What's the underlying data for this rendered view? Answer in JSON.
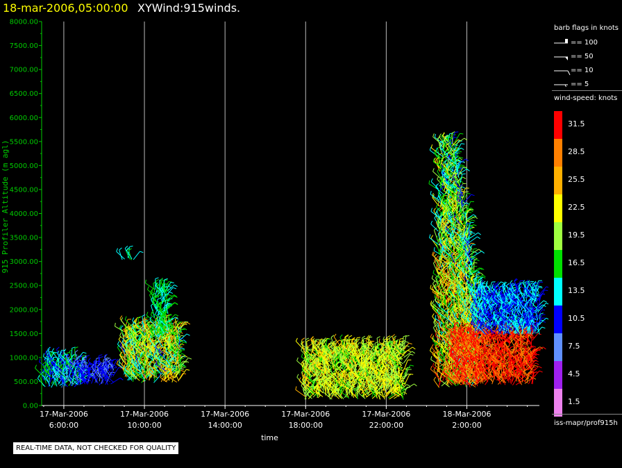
{
  "header": {
    "date_title": "18-mar-2006,05:00:00",
    "main_title": "XYWind:915winds."
  },
  "chart_data": {
    "type": "scatter",
    "subtype": "wind-barb profile",
    "ylabel": "915 Profiler Altitude (m agl)",
    "xlabel": "time",
    "y_ticks": [
      "8000.00",
      "7500.00",
      "7000.00",
      "6500.00",
      "6000.00",
      "5500.00",
      "5000.00",
      "4500.00",
      "4000.00",
      "3500.00",
      "3000.00",
      "2500.00",
      "2000.00",
      "1500.00",
      "1000.00",
      "500.00",
      "0.00"
    ],
    "y_tick_values": [
      8000,
      7500,
      7000,
      6500,
      6000,
      5500,
      5000,
      4500,
      4000,
      3500,
      3000,
      2500,
      2000,
      1500,
      1000,
      500,
      0
    ],
    "ylim": [
      0,
      8000
    ],
    "x_ticks": [
      {
        "date": "17-Mar-2006",
        "time": "6:00:00",
        "hours": 6
      },
      {
        "date": "17-Mar-2006",
        "time": "10:00:00",
        "hours": 10
      },
      {
        "date": "17-Mar-2006",
        "time": "14:00:00",
        "hours": 14
      },
      {
        "date": "17-Mar-2006",
        "time": "18:00:00",
        "hours": 18
      },
      {
        "date": "17-Mar-2006",
        "time": "22:00:00",
        "hours": 22
      },
      {
        "date": "18-Mar-2006",
        "time": "2:00:00",
        "hours": 26
      }
    ],
    "xlim_hours_from_17mar_0000": [
      4.9,
      29.6
    ],
    "grid": "vertical at x ticks",
    "clusters": [
      {
        "t0": 5.0,
        "t1": 6.9,
        "alt0": 400,
        "alt1": 1000,
        "speed_range": [
          4,
          17
        ]
      },
      {
        "t0": 6.9,
        "t1": 8.5,
        "alt0": 450,
        "alt1": 800,
        "speed_range": [
          6,
          12
        ]
      },
      {
        "t0": 8.8,
        "t1": 9.5,
        "alt0": 3050,
        "alt1": 3100,
        "speed_range": [
          14,
          15
        ]
      },
      {
        "t0": 9.0,
        "t1": 11.8,
        "alt0": 500,
        "alt1": 1600,
        "speed_range": [
          3,
          28
        ]
      },
      {
        "t0": 10.5,
        "t1": 11.2,
        "alt0": 1400,
        "alt1": 2400,
        "speed_range": [
          10,
          18
        ]
      },
      {
        "t0": 17.9,
        "t1": 22.9,
        "alt0": 150,
        "alt1": 1200,
        "speed_range": [
          13,
          25
        ]
      },
      {
        "t0": 24.6,
        "t1": 26.6,
        "alt0": 400,
        "alt1": 5500,
        "speed_range": [
          5,
          30
        ]
      },
      {
        "t0": 25.3,
        "t1": 29.3,
        "alt0": 450,
        "alt1": 1500,
        "speed_range": [
          25,
          33
        ]
      },
      {
        "t0": 26.4,
        "t1": 29.6,
        "alt0": 1500,
        "alt1": 2400,
        "speed_range": [
          8,
          14
        ]
      }
    ]
  },
  "legend": {
    "barb_title": "barb flags in knots",
    "barbs": [
      {
        "label": "== 100"
      },
      {
        "label": "== 50"
      },
      {
        "label": "== 10"
      },
      {
        "label": "== 5"
      }
    ],
    "speed_title": "wind-speed: knots",
    "colors": [
      {
        "label": "31.5",
        "color": "#ff0000"
      },
      {
        "label": "28.5",
        "color": "#ff8000"
      },
      {
        "label": "25.5",
        "color": "#ffb000"
      },
      {
        "label": "22.5",
        "color": "#ffff00"
      },
      {
        "label": "19.5",
        "color": "#a0ff40"
      },
      {
        "label": "16.5",
        "color": "#00e000"
      },
      {
        "label": "13.5",
        "color": "#00ffff"
      },
      {
        "label": "10.5",
        "color": "#0000ff"
      },
      {
        "label": "7.5",
        "color": "#6090ff"
      },
      {
        "label": "4.5",
        "color": "#a020f0"
      },
      {
        "label": "1.5",
        "color": "#ee82ee"
      }
    ],
    "source": "iss-mapr/prof915h"
  },
  "footer": {
    "qc_note": "REAL-TIME DATA, NOT CHECKED FOR QUALITY"
  }
}
